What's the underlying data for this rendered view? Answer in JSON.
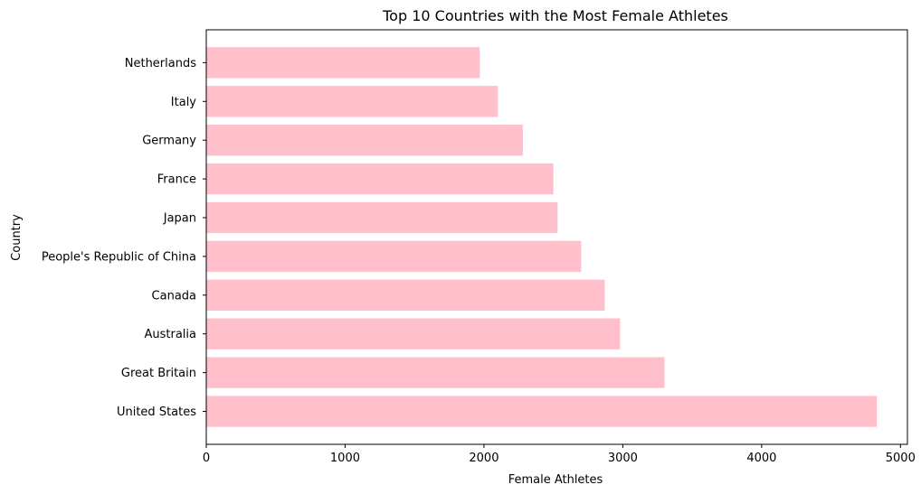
{
  "chart_data": {
    "type": "bar",
    "orientation": "horizontal",
    "title": "Top 10 Countries with the Most Female Athletes",
    "xlabel": "Female Athletes",
    "ylabel": "Country",
    "xlim": [
      0,
      5050
    ],
    "xticks": [
      0,
      1000,
      2000,
      3000,
      4000,
      5000
    ],
    "categories": [
      "United States",
      "Great Britain",
      "Australia",
      "Canada",
      "People's Republic of China",
      "Japan",
      "France",
      "Germany",
      "Italy",
      "Netherlands"
    ],
    "values": [
      4830,
      3300,
      2980,
      2870,
      2700,
      2530,
      2500,
      2280,
      2100,
      1970
    ],
    "bar_color": "#ffc0cb",
    "grid": false
  }
}
